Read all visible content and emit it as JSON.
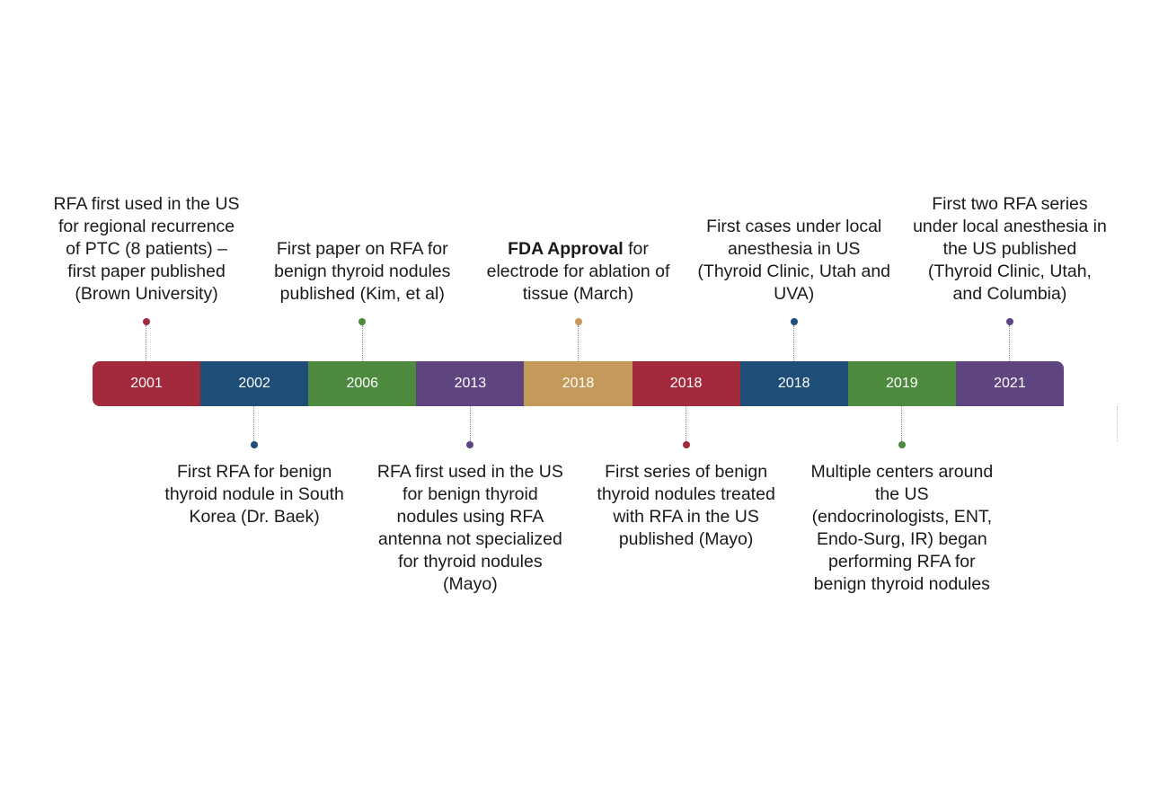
{
  "segments": [
    {
      "year": "2001",
      "color": "#A32A3C"
    },
    {
      "year": "2002",
      "color": "#1E4E78"
    },
    {
      "year": "2006",
      "color": "#4E8A3E"
    },
    {
      "year": "2013",
      "color": "#5E4580"
    },
    {
      "year": "2018",
      "color": "#C49A5A"
    },
    {
      "year": "2018",
      "color": "#A32A3C"
    },
    {
      "year": "2018",
      "color": "#1E4E78"
    },
    {
      "year": "2019",
      "color": "#4E8A3E"
    },
    {
      "year": "2021",
      "color": "#5E4580"
    }
  ],
  "events": [
    {
      "text": "RFA first used in the US for regional recurrence of PTC (8 patients) – first paper published (Brown University)",
      "position": "above"
    },
    {
      "text": "First RFA for benign thyroid nodule in South Korea (Dr. Baek)",
      "position": "below"
    },
    {
      "text": "First paper on RFA for benign thyroid nodules published (Kim, et al)",
      "position": "above"
    },
    {
      "text": "RFA first used in the US for benign thyroid nodules using RFA antenna not specialized for thyroid nodules (Mayo)",
      "position": "below"
    },
    {
      "bold": "FDA Approval",
      "text": " for electrode for ablation of tissue (March)",
      "position": "above"
    },
    {
      "text": "First series of benign thyroid nodules treated with RFA in the US published (Mayo)",
      "position": "below"
    },
    {
      "text": "First cases under local anesthesia in US (Thyroid Clinic, Utah and UVA)",
      "position": "above"
    },
    {
      "text": "Multiple centers around the US (endocrinologists, ENT, Endo-Surg, IR) began performing RFA for benign thyroid nodules",
      "position": "below"
    },
    {
      "text": "First two RFA series under local anesthesia in the US published (Thyroid Clinic, Utah, and Columbia)",
      "position": "above"
    }
  ]
}
